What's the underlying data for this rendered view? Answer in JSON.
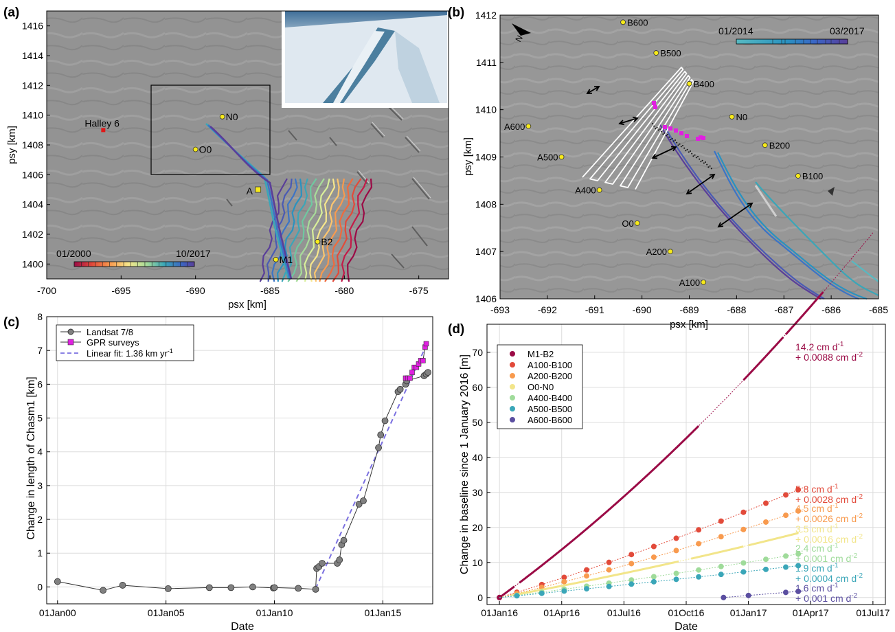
{
  "panels": {
    "a": {
      "label": "(a)"
    },
    "b": {
      "label": "(b)"
    },
    "c": {
      "label": "(c)"
    },
    "d": {
      "label": "(d)"
    }
  },
  "colors": {
    "map_bg": "#8f8f8f",
    "gpr_square": "#e020e0",
    "linear_fit": "#7a6fe0",
    "marker_yellow": "#f7ea1a",
    "halley_red": "#e01818"
  },
  "map_a": {
    "xlabel": "psx [km]",
    "ylabel": "psy [km]",
    "xlim": [
      -700,
      -673
    ],
    "ylim": [
      1399,
      1417
    ],
    "xticks": [
      -700,
      -695,
      -690,
      -685,
      -680,
      -675
    ],
    "yticks": [
      1400,
      1402,
      1404,
      1406,
      1408,
      1410,
      1412,
      1414,
      1416
    ],
    "colorbar": {
      "start_label": "01/2000",
      "end_label": "10/2017"
    },
    "sites": [
      {
        "name": "Halley 6",
        "x": -696.2,
        "y": 1409.0,
        "marker": "square-red"
      },
      {
        "name": "N0",
        "x": -688.2,
        "y": 1409.9,
        "marker": "circle"
      },
      {
        "name": "O0",
        "x": -690.0,
        "y": 1407.7,
        "marker": "circle"
      },
      {
        "name": "A",
        "x": -685.8,
        "y": 1405.0,
        "marker": "square-yellow"
      },
      {
        "name": "B2",
        "x": -681.8,
        "y": 1401.5,
        "marker": "circle"
      },
      {
        "name": "M1",
        "x": -684.6,
        "y": 1400.3,
        "marker": "circle"
      }
    ],
    "inset_box": {
      "x": [
        -693,
        -685
      ],
      "y": [
        1406,
        1412
      ]
    }
  },
  "map_b": {
    "xlabel": "psx [km]",
    "ylabel": "psy [km]",
    "xlim": [
      -693,
      -685
    ],
    "ylim": [
      1406,
      1412
    ],
    "xticks": [
      -693,
      -692,
      -691,
      -690,
      -689,
      -688,
      -687,
      -686,
      -685
    ],
    "yticks": [
      1406,
      1407,
      1408,
      1409,
      1410,
      1411,
      1412
    ],
    "colorbar": {
      "start_label": "01/2014",
      "end_label": "03/2017"
    },
    "north_label": "N",
    "sites": [
      {
        "name": "B600",
        "x": -690.4,
        "y": 1411.85
      },
      {
        "name": "B500",
        "x": -689.7,
        "y": 1411.2
      },
      {
        "name": "B400",
        "x": -689.0,
        "y": 1410.55
      },
      {
        "name": "N0",
        "x": -688.1,
        "y": 1409.85
      },
      {
        "name": "B200",
        "x": -687.4,
        "y": 1409.25
      },
      {
        "name": "B100",
        "x": -686.7,
        "y": 1408.6
      },
      {
        "name": "A600",
        "x": -692.4,
        "y": 1409.65
      },
      {
        "name": "A500",
        "x": -691.7,
        "y": 1409.0
      },
      {
        "name": "A400",
        "x": -690.9,
        "y": 1408.3
      },
      {
        "name": "O0",
        "x": -690.1,
        "y": 1407.6
      },
      {
        "name": "A200",
        "x": -689.4,
        "y": 1407.0
      },
      {
        "name": "A100",
        "x": -688.7,
        "y": 1406.35
      }
    ]
  },
  "chart_data": [
    {
      "panel": "c",
      "type": "line",
      "xlabel": "Date",
      "ylabel": "Change in length of Chasm1 [km]",
      "xlim": [
        1999.5,
        2017.3
      ],
      "ylim": [
        -0.5,
        8
      ],
      "xticks": [
        {
          "value": 2000,
          "label": "01Jan00"
        },
        {
          "value": 2005,
          "label": "01Jan05"
        },
        {
          "value": 2010,
          "label": "01Jan10"
        },
        {
          "value": 2015,
          "label": "01Jan15"
        }
      ],
      "yticks": [
        0,
        1,
        2,
        3,
        4,
        5,
        6,
        7,
        8
      ],
      "grid": true,
      "legend": {
        "placement": "top-left",
        "entries": [
          "Landsat 7/8",
          "GPR surveys",
          "Linear fit: 1.36 km yr"
        ],
        "fit_unit_superscript": "-1"
      },
      "series": [
        {
          "name": "Landsat 7/8",
          "x": [
            2000.0,
            2002.1,
            2003.0,
            2005.1,
            2007.0,
            2008.0,
            2009.0,
            2009.95,
            2010.0,
            2011.1,
            2011.9,
            2011.95,
            2012.05,
            2012.2,
            2012.9,
            2013.0,
            2013.1,
            2013.2,
            2013.9,
            2014.1,
            2014.8,
            2014.9,
            2015.1,
            2015.7,
            2015.8,
            2016.05,
            2016.1,
            2016.9,
            2017.0,
            2017.08
          ],
          "y": [
            0.16,
            -0.1,
            0.05,
            -0.05,
            -0.02,
            -0.02,
            0.0,
            -0.03,
            -0.02,
            -0.04,
            -0.07,
            0.55,
            0.6,
            0.7,
            0.7,
            0.8,
            1.25,
            1.38,
            2.45,
            2.55,
            4.12,
            4.5,
            4.92,
            5.78,
            5.85,
            6.0,
            6.1,
            6.25,
            6.3,
            6.35
          ]
        },
        {
          "name": "GPR surveys",
          "x": [
            2016.05,
            2016.15,
            2016.25,
            2016.35,
            2016.45,
            2016.55,
            2016.65,
            2016.75,
            2016.85,
            2016.95,
            2017.0
          ],
          "y": [
            6.18,
            6.18,
            6.18,
            6.35,
            6.5,
            6.5,
            6.6,
            6.7,
            6.7,
            7.1,
            7.2
          ]
        },
        {
          "name": "Linear fit: 1.36 km yr",
          "x": [
            2011.9,
            2017.0
          ],
          "y": [
            -0.05,
            7.15
          ]
        }
      ]
    },
    {
      "panel": "d",
      "type": "scatter",
      "xlabel": "Date",
      "ylabel": "Change in baseline since 1 January 2016 [m]",
      "xlim": [
        2015.95,
        2017.55
      ],
      "ylim": [
        -2,
        78
      ],
      "xticks": [
        {
          "value": 2016.0,
          "label": "01Jan16"
        },
        {
          "value": 2016.25,
          "label": "01Apr16"
        },
        {
          "value": 2016.5,
          "label": "01Jul16"
        },
        {
          "value": 2016.75,
          "label": "01Oct16"
        },
        {
          "value": 2017.0,
          "label": "01Jan17"
        },
        {
          "value": 2017.25,
          "label": "01Apr17"
        },
        {
          "value": 2017.5,
          "label": "01Jul17"
        }
      ],
      "yticks": [
        0,
        10,
        20,
        30,
        40,
        50,
        60,
        70
      ],
      "grid": true,
      "legend": {
        "placement": "top-left"
      },
      "series": [
        {
          "name": "M1-B2",
          "color": "#9b0b46",
          "v": 14.2,
          "a": 0.0088,
          "rate_label": "14.2 cm d",
          "acc_label": "+ 0.0088 cm d",
          "dense": [
            [
              2016.0,
              2016.06
            ],
            [
              2016.08,
              2016.8
            ],
            [
              2016.98,
              2017.14
            ],
            [
              2017.15,
              2017.3
            ]
          ],
          "points": [
            2016.0
          ]
        },
        {
          "name": "A100-B100",
          "color": "#e24a3a",
          "v": 5.8,
          "a": 0.0028,
          "rate_label": "5.8 cm d",
          "acc_label": "+ 0.0028 cm d",
          "dense": [],
          "points": [
            2016.07,
            2016.17,
            2016.26,
            2016.35,
            2016.44,
            2016.53,
            2016.62,
            2016.71,
            2016.8,
            2016.89,
            2016.98,
            2017.07,
            2017.15,
            2017.2
          ]
        },
        {
          "name": "A200-B200",
          "color": "#f89a4e",
          "v": 4.5,
          "a": 0.0026,
          "rate_label": "4.5 cm d",
          "acc_label": "+ 0.0026 cm d",
          "dense": [],
          "points": [
            2016.07,
            2016.17,
            2016.26,
            2016.35,
            2016.44,
            2016.53,
            2016.62,
            2016.71,
            2016.8,
            2016.89,
            2016.98,
            2017.07,
            2017.15,
            2017.2
          ]
        },
        {
          "name": "O0-N0",
          "color": "#f2e58a",
          "v": 3.5,
          "a": 0.0016,
          "rate_label": "3.5 cm d",
          "acc_label": "+ 0.0016 cm d",
          "dense": [
            [
              2016.05,
              2016.72
            ],
            [
              2016.77,
              2016.98
            ],
            [
              2017.0,
              2017.2
            ]
          ],
          "points": []
        },
        {
          "name": "A400-B400",
          "color": "#9fdb9a",
          "v": 2.4,
          "a": 0.001,
          "rate_label": "2.4 cm d",
          "acc_label": "+ 0.001 cm d",
          "dense": [],
          "points": [
            2016.07,
            2016.17,
            2016.26,
            2016.35,
            2016.44,
            2016.53,
            2016.62,
            2016.71,
            2016.8,
            2016.89,
            2016.98,
            2017.07,
            2017.15,
            2017.2
          ]
        },
        {
          "name": "A500-B500",
          "color": "#3aa6b8",
          "v": 1.9,
          "a": 0.0004,
          "rate_label": "1.9 cm d",
          "acc_label": "+ 0.0004 cm d",
          "dense": [],
          "points": [
            2016.07,
            2016.17,
            2016.26,
            2016.35,
            2016.44,
            2016.53,
            2016.62,
            2016.71,
            2016.8,
            2016.89,
            2016.98,
            2017.07,
            2017.15,
            2017.2
          ]
        },
        {
          "name": "A600-B600",
          "color": "#5a4ea0",
          "v": 1.6,
          "a": 0.001,
          "rate_label": "1.6 cm d",
          "acc_label": "+ 0.001 cm d",
          "dense": [],
          "points": [
            2016.9,
            2017.0,
            2017.15,
            2017.2
          ]
        }
      ],
      "superscripts": {
        "rate": "-1",
        "acc": "-2"
      }
    }
  ]
}
